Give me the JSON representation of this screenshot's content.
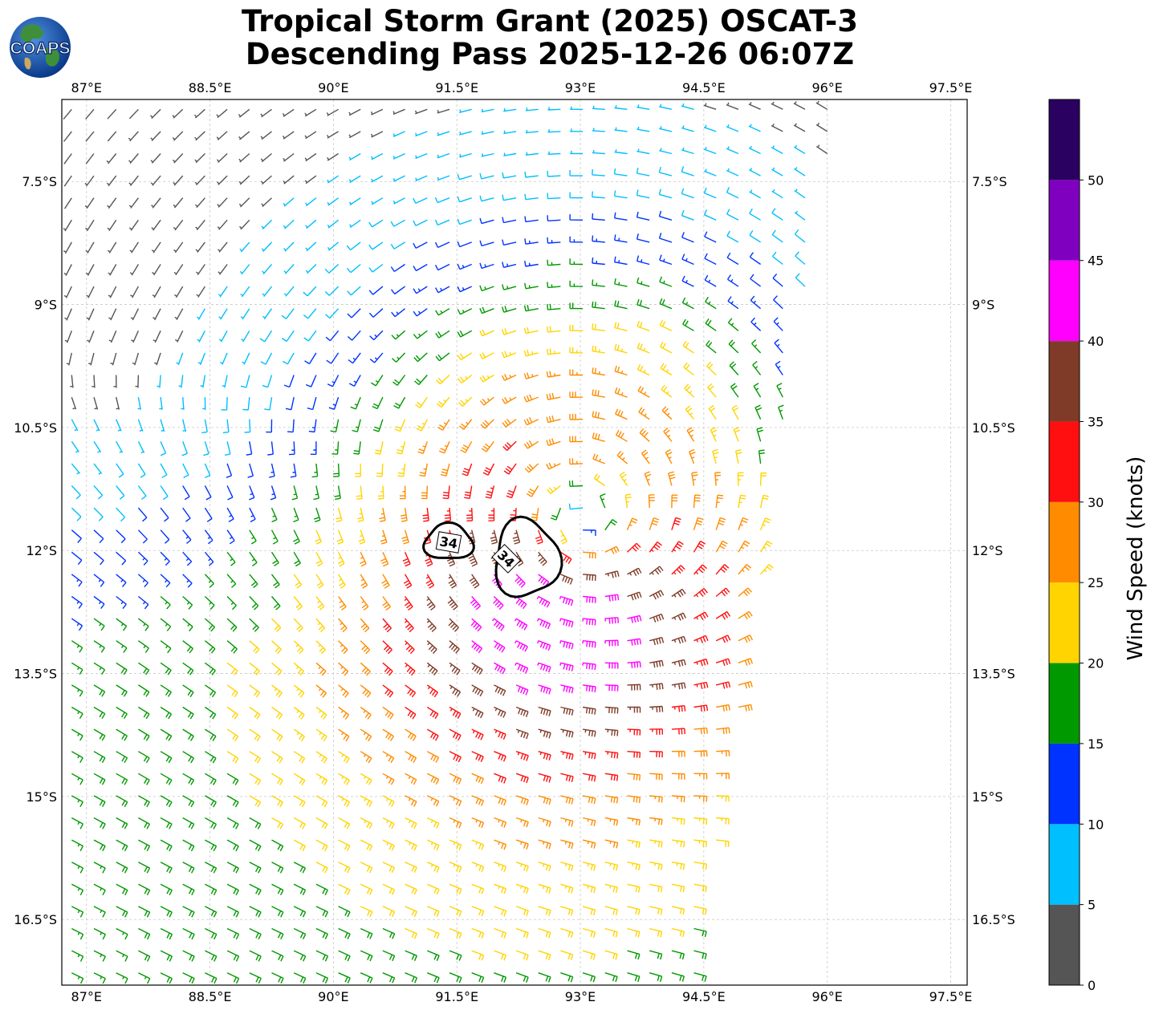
{
  "title": {
    "line1": "Tropical Storm Grant (2025) OSCAT-3",
    "line2": "Descending Pass 2025-12-26 06:07Z"
  },
  "logo": {
    "text": "COAPS"
  },
  "map": {
    "lon_range": [
      86.7,
      97.7
    ],
    "lat_range": [
      -17.3,
      -6.5
    ],
    "lon_ticks": [
      "87°E",
      "88.5°E",
      "90°E",
      "91.5°E",
      "93°E",
      "94.5°E",
      "96°E",
      "97.5°E"
    ],
    "lon_tick_values": [
      87,
      88.5,
      90,
      91.5,
      93,
      94.5,
      96,
      97.5
    ],
    "lat_ticks": [
      "7.5°S",
      "9°S",
      "10.5°S",
      "12°S",
      "13.5°S",
      "15°S",
      "16.5°S"
    ],
    "lat_tick_values": [
      -7.5,
      -9,
      -10.5,
      -12,
      -13.5,
      -15,
      -16.5
    ],
    "grid": true,
    "storm_center": {
      "lon": 93.0,
      "lat": -11.7
    },
    "contour_label": "34",
    "contour_34kt_lobes": [
      {
        "label_lon": 91.4,
        "label_lat": -11.9
      },
      {
        "label_lon": 92.1,
        "label_lat": -12.1
      }
    ],
    "swath_corners": [
      {
        "lon": 86.7,
        "lat": -6.5
      },
      {
        "lon": 96.1,
        "lat": -6.6
      },
      {
        "lon": 94.4,
        "lat": -17.3
      },
      {
        "lon": 86.7,
        "lat": -17.3
      }
    ]
  },
  "colorbar": {
    "label": "Wind Speed (knots)",
    "ticks": [
      "0",
      "5",
      "10",
      "15",
      "20",
      "25",
      "30",
      "35",
      "40",
      "45",
      "50"
    ],
    "bins": [
      {
        "min": 0,
        "max": 5,
        "color": "#555555"
      },
      {
        "min": 5,
        "max": 10,
        "color": "#00bfff"
      },
      {
        "min": 10,
        "max": 15,
        "color": "#0033ff"
      },
      {
        "min": 15,
        "max": 20,
        "color": "#009900"
      },
      {
        "min": 20,
        "max": 25,
        "color": "#ffd400"
      },
      {
        "min": 25,
        "max": 30,
        "color": "#ff8c00"
      },
      {
        "min": 30,
        "max": 35,
        "color": "#ff0f0f"
      },
      {
        "min": 35,
        "max": 40,
        "color": "#7f3b28"
      },
      {
        "min": 40,
        "max": 45,
        "color": "#ff00ff"
      },
      {
        "min": 45,
        "max": 50,
        "color": "#8000c0"
      },
      {
        "min": 50,
        "max": 55,
        "color": "#2a0060"
      }
    ]
  }
}
